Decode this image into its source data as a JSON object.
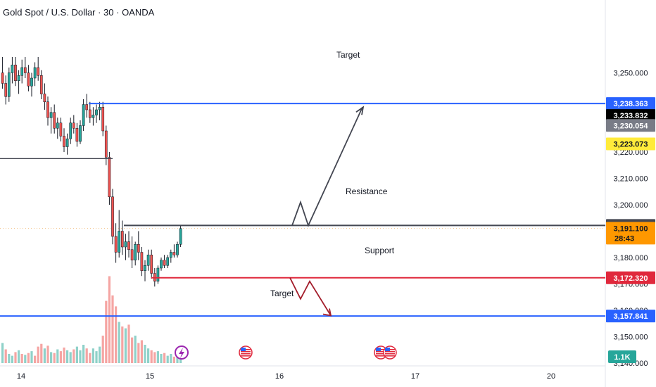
{
  "header": {
    "title": "Gold Spot / U.S. Dollar · 30 · OANDA"
  },
  "colors": {
    "up": "#26a69a",
    "down": "#ef5350",
    "vol_up": "#8fd1c9",
    "vol_down": "#f5a5a3",
    "blue_line": "#2962ff",
    "red_line": "#e0283c",
    "resistance": "#434651",
    "arrow_up": "#434651",
    "arrow_down": "#a31d2b"
  },
  "chart_data": {
    "type": "candlestick",
    "ylim": [
      3130,
      3255
    ],
    "y_ticks": [
      {
        "v": 3250,
        "label": "3,250.000"
      },
      {
        "v": 3220,
        "label": "3,220.000"
      },
      {
        "v": 3210,
        "label": "3,210.000"
      },
      {
        "v": 3200,
        "label": "3,200.000"
      },
      {
        "v": 3180,
        "label": "3,180.000"
      },
      {
        "v": 3170,
        "label": "3,170.000"
      },
      {
        "v": 3160,
        "label": "3,160.000"
      },
      {
        "v": 3150,
        "label": "3,150.000"
      },
      {
        "v": 3140,
        "label": "3,140.000"
      }
    ],
    "x_ticks": [
      "14",
      "15",
      "16",
      "17",
      "20"
    ],
    "price_tags": [
      {
        "v": 3238.363,
        "label": "3,238.363",
        "bg": "#2962ff",
        "fg": "#ffffff"
      },
      {
        "v": 3233.832,
        "label": "3,233.832",
        "bg": "#000000",
        "fg": "#ffffff"
      },
      {
        "v": 3230.054,
        "label": "3,230.054",
        "bg": "#787b86",
        "fg": "#ffffff"
      },
      {
        "v": 3223.073,
        "label": "3,223.073",
        "bg": "#ffeb3b",
        "fg": "#131722"
      },
      {
        "v": 3192.157,
        "label": "3,192.157",
        "bg": "#434651",
        "fg": "#ffffff"
      },
      {
        "v": 3191.1,
        "label": "3,191.100",
        "sub": "28:43",
        "bg": "#ff9800",
        "fg": "#131722"
      },
      {
        "v": 3172.32,
        "label": "3,172.320",
        "bg": "#e0283c",
        "fg": "#ffffff"
      },
      {
        "v": 3157.841,
        "label": "3,157.841",
        "bg": "#2962ff",
        "fg": "#ffffff"
      }
    ],
    "volume_tag": "1.1K",
    "levels": [
      {
        "name": "upper-target",
        "v": 3238.363,
        "color": "blue"
      },
      {
        "name": "resistance",
        "v": 3192.157,
        "color": "resistance"
      },
      {
        "name": "support",
        "v": 3172.32,
        "color": "red"
      },
      {
        "name": "lower-target",
        "v": 3157.841,
        "color": "blue"
      }
    ],
    "left_marker_level": 3217.5,
    "annotations": {
      "target_top": "Target",
      "resistance": "Resistance",
      "support": "Support",
      "target_bottom": "Target"
    },
    "candles": [
      [
        3250,
        3256,
        3244,
        3246
      ],
      [
        3246,
        3249,
        3238,
        3241
      ],
      [
        3241,
        3252,
        3239,
        3250
      ],
      [
        3250,
        3256,
        3246,
        3253
      ],
      [
        3253,
        3256,
        3245,
        3247
      ],
      [
        3247,
        3251,
        3242,
        3249
      ],
      [
        3249,
        3255,
        3246,
        3252
      ],
      [
        3252,
        3256,
        3248,
        3250
      ],
      [
        3250,
        3253,
        3243,
        3245
      ],
      [
        3245,
        3250,
        3241,
        3248
      ],
      [
        3248,
        3254,
        3245,
        3252
      ],
      [
        3252,
        3256,
        3247,
        3249
      ],
      [
        3249,
        3251,
        3240,
        3242
      ],
      [
        3242,
        3246,
        3236,
        3239
      ],
      [
        3239,
        3241,
        3230,
        3233
      ],
      [
        3233,
        3237,
        3227,
        3235
      ],
      [
        3235,
        3238,
        3227,
        3229
      ],
      [
        3229,
        3233,
        3225,
        3231
      ],
      [
        3231,
        3233,
        3224,
        3226
      ],
      [
        3226,
        3229,
        3220,
        3222
      ],
      [
        3222,
        3227,
        3219,
        3225
      ],
      [
        3225,
        3233,
        3223,
        3231
      ],
      [
        3231,
        3234,
        3227,
        3229
      ],
      [
        3229,
        3231,
        3222,
        3224
      ],
      [
        3224,
        3232,
        3223,
        3230
      ],
      [
        3230,
        3240,
        3228,
        3238
      ],
      [
        3238,
        3242,
        3233,
        3236
      ],
      [
        3236,
        3239,
        3231,
        3233
      ],
      [
        3233,
        3237,
        3230,
        3234
      ],
      [
        3234,
        3238,
        3231,
        3236
      ],
      [
        3236,
        3239,
        3232,
        3237
      ],
      [
        3237,
        3239,
        3226,
        3228
      ],
      [
        3228,
        3230,
        3215,
        3218
      ],
      [
        3218,
        3220,
        3200,
        3203
      ],
      [
        3203,
        3206,
        3185,
        3188
      ],
      [
        3188,
        3193,
        3178,
        3182
      ],
      [
        3182,
        3198,
        3180,
        3190
      ],
      [
        3190,
        3194,
        3181,
        3184
      ],
      [
        3184,
        3189,
        3179,
        3186
      ],
      [
        3186,
        3190,
        3180,
        3183
      ],
      [
        3183,
        3188,
        3176,
        3179
      ],
      [
        3179,
        3186,
        3177,
        3185
      ],
      [
        3185,
        3190,
        3179,
        3182
      ],
      [
        3182,
        3184,
        3173,
        3175
      ],
      [
        3175,
        3179,
        3171,
        3177
      ],
      [
        3177,
        3183,
        3175,
        3181
      ],
      [
        3181,
        3183,
        3172,
        3174
      ],
      [
        3174,
        3176,
        3169,
        3171
      ],
      [
        3171,
        3177,
        3170,
        3176
      ],
      [
        3176,
        3180,
        3175,
        3179
      ],
      [
        3179,
        3181,
        3176,
        3177
      ],
      [
        3177,
        3181,
        3176,
        3180
      ],
      [
        3180,
        3183,
        3178,
        3182
      ],
      [
        3182,
        3185,
        3180,
        3181
      ],
      [
        3181,
        3186,
        3180,
        3185
      ],
      [
        3185,
        3192,
        3184,
        3191
      ]
    ],
    "volumes": [
      [
        0.22,
        "u"
      ],
      [
        0.15,
        "d"
      ],
      [
        0.1,
        "u"
      ],
      [
        0.08,
        "u"
      ],
      [
        0.12,
        "d"
      ],
      [
        0.14,
        "u"
      ],
      [
        0.1,
        "d"
      ],
      [
        0.09,
        "u"
      ],
      [
        0.11,
        "d"
      ],
      [
        0.13,
        "u"
      ],
      [
        0.08,
        "d"
      ],
      [
        0.18,
        "d"
      ],
      [
        0.21,
        "d"
      ],
      [
        0.16,
        "u"
      ],
      [
        0.19,
        "d"
      ],
      [
        0.12,
        "u"
      ],
      [
        0.11,
        "d"
      ],
      [
        0.15,
        "u"
      ],
      [
        0.13,
        "d"
      ],
      [
        0.17,
        "d"
      ],
      [
        0.14,
        "u"
      ],
      [
        0.12,
        "u"
      ],
      [
        0.15,
        "d"
      ],
      [
        0.18,
        "u"
      ],
      [
        0.14,
        "u"
      ],
      [
        0.2,
        "u"
      ],
      [
        0.16,
        "d"
      ],
      [
        0.11,
        "d"
      ],
      [
        0.16,
        "u"
      ],
      [
        0.13,
        "u"
      ],
      [
        0.18,
        "u"
      ],
      [
        0.3,
        "d"
      ],
      [
        0.68,
        "d"
      ],
      [
        0.95,
        "d"
      ],
      [
        0.74,
        "d"
      ],
      [
        0.62,
        "d"
      ],
      [
        0.45,
        "u"
      ],
      [
        0.4,
        "d"
      ],
      [
        0.38,
        "u"
      ],
      [
        0.42,
        "d"
      ],
      [
        0.28,
        "d"
      ],
      [
        0.3,
        "u"
      ],
      [
        0.22,
        "d"
      ],
      [
        0.25,
        "d"
      ],
      [
        0.2,
        "u"
      ],
      [
        0.16,
        "u"
      ],
      [
        0.14,
        "d"
      ],
      [
        0.12,
        "d"
      ],
      [
        0.13,
        "u"
      ],
      [
        0.1,
        "u"
      ],
      [
        0.11,
        "d"
      ],
      [
        0.08,
        "u"
      ],
      [
        0.1,
        "u"
      ],
      [
        0.07,
        "d"
      ],
      [
        0.08,
        "u"
      ],
      [
        0.06,
        "u"
      ]
    ],
    "events": [
      "lightning",
      "us-flag",
      "us-flag",
      "us-flag"
    ]
  }
}
